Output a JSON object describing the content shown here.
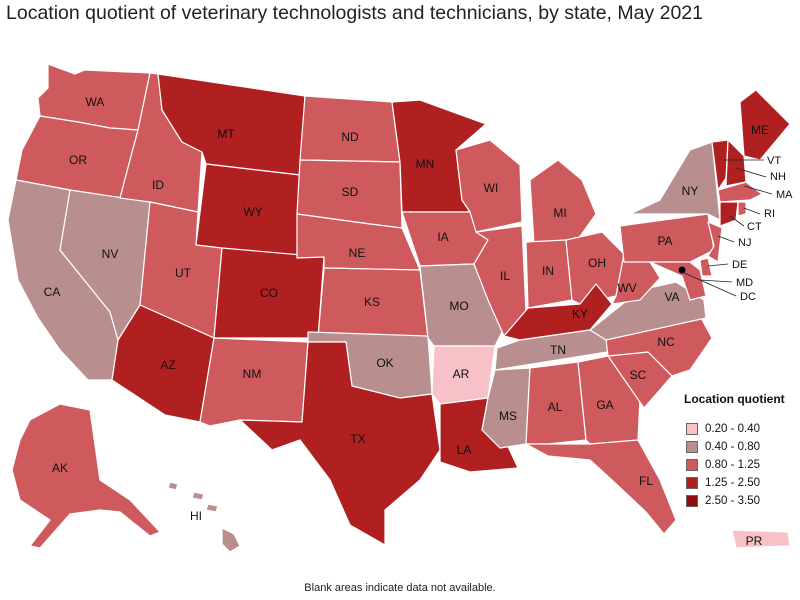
{
  "title": "Location quotient of veterinary technologists and technicians, by state, May 2021",
  "legend": {
    "title": "Location quotient",
    "items": [
      {
        "range": "0.20 - 0.40",
        "color": "#f8c1c8"
      },
      {
        "range": "0.40 - 0.80",
        "color": "#b98e8e"
      },
      {
        "range": "0.80 - 1.25",
        "color": "#cf5a5e"
      },
      {
        "range": "1.25 - 2.50",
        "color": "#b02020"
      },
      {
        "range": "2.50 - 3.50",
        "color": "#8e0e0e"
      }
    ]
  },
  "footnote": "Blank areas indicate data not available.",
  "states": [
    {
      "abbr": "WA",
      "class": "0.80 - 1.25"
    },
    {
      "abbr": "OR",
      "class": "0.80 - 1.25"
    },
    {
      "abbr": "CA",
      "class": "0.40 - 0.80"
    },
    {
      "abbr": "NV",
      "class": "0.40 - 0.80"
    },
    {
      "abbr": "ID",
      "class": "0.80 - 1.25"
    },
    {
      "abbr": "MT",
      "class": "1.25 - 2.50"
    },
    {
      "abbr": "WY",
      "class": "1.25 - 2.50"
    },
    {
      "abbr": "UT",
      "class": "0.80 - 1.25"
    },
    {
      "abbr": "AZ",
      "class": "1.25 - 2.50"
    },
    {
      "abbr": "CO",
      "class": "1.25 - 2.50"
    },
    {
      "abbr": "NM",
      "class": "0.80 - 1.25"
    },
    {
      "abbr": "ND",
      "class": "0.80 - 1.25"
    },
    {
      "abbr": "SD",
      "class": "0.80 - 1.25"
    },
    {
      "abbr": "NE",
      "class": "0.80 - 1.25"
    },
    {
      "abbr": "KS",
      "class": "0.80 - 1.25"
    },
    {
      "abbr": "OK",
      "class": "0.40 - 0.80"
    },
    {
      "abbr": "TX",
      "class": "1.25 - 2.50"
    },
    {
      "abbr": "MN",
      "class": "1.25 - 2.50"
    },
    {
      "abbr": "IA",
      "class": "0.80 - 1.25"
    },
    {
      "abbr": "MO",
      "class": "0.40 - 0.80"
    },
    {
      "abbr": "AR",
      "class": "0.20 - 0.40"
    },
    {
      "abbr": "LA",
      "class": "1.25 - 2.50"
    },
    {
      "abbr": "WI",
      "class": "0.80 - 1.25"
    },
    {
      "abbr": "IL",
      "class": "0.80 - 1.25"
    },
    {
      "abbr": "MI",
      "class": "0.80 - 1.25"
    },
    {
      "abbr": "IN",
      "class": "0.80 - 1.25"
    },
    {
      "abbr": "OH",
      "class": "0.80 - 1.25"
    },
    {
      "abbr": "KY",
      "class": "1.25 - 2.50"
    },
    {
      "abbr": "TN",
      "class": "0.40 - 0.80"
    },
    {
      "abbr": "MS",
      "class": "0.40 - 0.80"
    },
    {
      "abbr": "AL",
      "class": "0.80 - 1.25"
    },
    {
      "abbr": "GA",
      "class": "0.80 - 1.25"
    },
    {
      "abbr": "FL",
      "class": "0.80 - 1.25"
    },
    {
      "abbr": "SC",
      "class": "0.80 - 1.25"
    },
    {
      "abbr": "NC",
      "class": "0.80 - 1.25"
    },
    {
      "abbr": "VA",
      "class": "0.40 - 0.80"
    },
    {
      "abbr": "WV",
      "class": "0.80 - 1.25"
    },
    {
      "abbr": "PA",
      "class": "0.80 - 1.25"
    },
    {
      "abbr": "NY",
      "class": "0.40 - 0.80"
    },
    {
      "abbr": "ME",
      "class": "1.25 - 2.50"
    },
    {
      "abbr": "VT",
      "class": "1.25 - 2.50"
    },
    {
      "abbr": "NH",
      "class": "1.25 - 2.50"
    },
    {
      "abbr": "MA",
      "class": "0.80 - 1.25"
    },
    {
      "abbr": "RI",
      "class": "0.80 - 1.25"
    },
    {
      "abbr": "CT",
      "class": "1.25 - 2.50"
    },
    {
      "abbr": "NJ",
      "class": "0.80 - 1.25"
    },
    {
      "abbr": "DE",
      "class": "0.80 - 1.25"
    },
    {
      "abbr": "MD",
      "class": "0.80 - 1.25"
    },
    {
      "abbr": "DC",
      "class": "2.50 - 3.50"
    },
    {
      "abbr": "AK",
      "class": "0.80 - 1.25"
    },
    {
      "abbr": "HI",
      "class": "0.40 - 0.80"
    },
    {
      "abbr": "PR",
      "class": "0.20 - 0.40"
    }
  ]
}
